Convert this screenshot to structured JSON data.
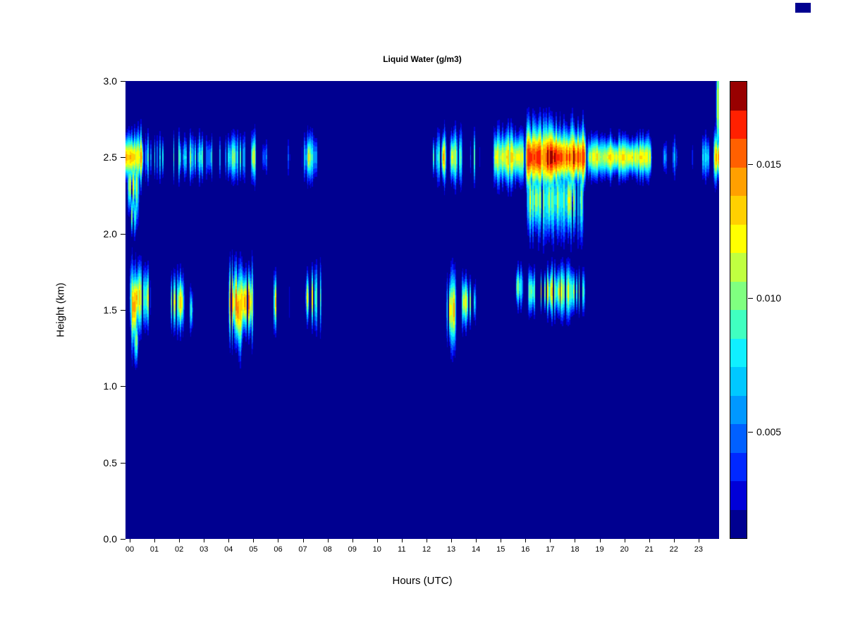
{
  "corner_mark": {
    "color": "#000090"
  },
  "chart_data": {
    "type": "heatmap",
    "title": "Liquid Water (g/m3)",
    "xlabel": "Hours (UTC)",
    "ylabel": "Height (km)",
    "x_range": [
      0,
      24
    ],
    "y_range": [
      0,
      3
    ],
    "x_ticks": [
      "00",
      "01",
      "02",
      "03",
      "04",
      "05",
      "06",
      "07",
      "08",
      "09",
      "10",
      "11",
      "12",
      "13",
      "14",
      "15",
      "16",
      "17",
      "18",
      "19",
      "20",
      "21",
      "22",
      "23"
    ],
    "y_ticks": [
      "3.0",
      "2.5",
      "2.0",
      "1.5",
      "1.0",
      "0.5",
      "0.0"
    ],
    "grid": false,
    "legend_position": "right-colorbar",
    "background_value": 0.001,
    "colorbar": {
      "range": [
        0.001,
        0.0181
      ],
      "ticks": [
        "0.015",
        "0.010",
        "0.005"
      ],
      "colors": [
        "#000090",
        "#0000D8",
        "#0028FF",
        "#0060FF",
        "#0098FF",
        "#00C8FF",
        "#10F0FF",
        "#40FFC0",
        "#80FF80",
        "#C0FF40",
        "#FFFF00",
        "#FFD000",
        "#FFA000",
        "#FF6000",
        "#FF2000",
        "#980000"
      ]
    },
    "features": [
      {
        "t0": -0.2,
        "t1": 0.75,
        "hc": 2.5,
        "hs": 0.1,
        "peak": 0.0135,
        "density": 1,
        "seed": 1
      },
      {
        "t0": 0.05,
        "t1": 0.6,
        "hc": 2.32,
        "hs": 0.14,
        "peak": 0.0115,
        "density": 0.9,
        "seed": 2
      },
      {
        "t0": 0.15,
        "t1": 0.5,
        "hc": 2.12,
        "hs": 0.1,
        "peak": 0.0095,
        "density": 0.8,
        "seed": 3
      },
      {
        "t0": 0.75,
        "t1": 1.6,
        "hc": 2.5,
        "hs": 0.09,
        "peak": 0.008,
        "density": 0.45,
        "seed": 4
      },
      {
        "t0": 1.6,
        "t1": 3.95,
        "hc": 2.5,
        "hs": 0.09,
        "peak": 0.0085,
        "density": 0.55,
        "seed": 5
      },
      {
        "t0": 2.55,
        "t1": 2.8,
        "hc": 2.5,
        "hs": 0.09,
        "peak": 0.0115,
        "density": 0.8,
        "seed": 6
      },
      {
        "t0": 4.0,
        "t1": 5.3,
        "hc": 2.5,
        "hs": 0.1,
        "peak": 0.0095,
        "density": 0.7,
        "seed": 7
      },
      {
        "t0": 4.25,
        "t1": 4.45,
        "hc": 2.5,
        "hs": 0.1,
        "peak": 0.0125,
        "density": 1,
        "seed": 8
      },
      {
        "t0": 5.05,
        "t1": 5.3,
        "hc": 2.5,
        "hs": 0.1,
        "peak": 0.0125,
        "density": 1,
        "seed": 9
      },
      {
        "t0": 5.5,
        "t1": 6.7,
        "hc": 2.5,
        "hs": 0.08,
        "peak": 0.006,
        "density": 0.35,
        "seed": 10
      },
      {
        "t0": 7.1,
        "t1": 7.85,
        "hc": 2.5,
        "hs": 0.1,
        "peak": 0.009,
        "density": 0.8,
        "seed": 11
      },
      {
        "t0": 7.3,
        "t1": 7.55,
        "hc": 2.5,
        "hs": 0.1,
        "peak": 0.0125,
        "density": 1,
        "seed": 12
      },
      {
        "t0": 12.35,
        "t1": 13.0,
        "hc": 2.5,
        "hs": 0.1,
        "peak": 0.009,
        "density": 0.7,
        "seed": 13
      },
      {
        "t0": 12.75,
        "t1": 13.0,
        "hc": 2.5,
        "hs": 0.11,
        "peak": 0.013,
        "density": 1,
        "seed": 14
      },
      {
        "t0": 13.1,
        "t1": 13.65,
        "hc": 2.5,
        "hs": 0.11,
        "peak": 0.013,
        "density": 0.85,
        "seed": 15
      },
      {
        "t0": 13.9,
        "t1": 14.35,
        "hc": 2.5,
        "hs": 0.1,
        "peak": 0.0085,
        "density": 0.6,
        "seed": 16
      },
      {
        "t0": 14.85,
        "t1": 16.15,
        "hc": 2.5,
        "hs": 0.11,
        "peak": 0.0125,
        "density": 1,
        "seed": 17
      },
      {
        "t0": 16.15,
        "t1": 18.65,
        "hc": 2.5,
        "hs": 0.13,
        "peak": 0.017,
        "density": 1,
        "seed": 18
      },
      {
        "t0": 16.2,
        "t1": 18.55,
        "hc": 2.22,
        "hs": 0.16,
        "peak": 0.011,
        "density": 0.95,
        "seed": 19
      },
      {
        "t0": 18.65,
        "t1": 21.3,
        "hc": 2.5,
        "hs": 0.08,
        "peak": 0.012,
        "density": 1,
        "seed": 20
      },
      {
        "t0": 21.7,
        "t1": 22.35,
        "hc": 2.5,
        "hs": 0.08,
        "peak": 0.006,
        "density": 0.4,
        "seed": 21
      },
      {
        "t0": 22.85,
        "t1": 23.05,
        "hc": 2.5,
        "hs": 0.07,
        "peak": 0.005,
        "density": 0.5,
        "seed": 22
      },
      {
        "t0": 23.15,
        "t1": 23.65,
        "hc": 2.5,
        "hs": 0.09,
        "peak": 0.0075,
        "density": 0.55,
        "seed": 23
      },
      {
        "t0": 23.75,
        "t1": 24.2,
        "hc": 2.5,
        "hs": 0.11,
        "peak": 0.014,
        "density": 1,
        "seed": 24
      },
      {
        "t0": 23.85,
        "t1": 24.2,
        "hc": 2.85,
        "hs": 0.22,
        "peak": 0.012,
        "density": 1,
        "seed": 25
      },
      {
        "t0": 0.15,
        "t1": 1.05,
        "hc": 1.58,
        "hs": 0.13,
        "peak": 0.013,
        "density": 0.95,
        "seed": 26
      },
      {
        "t0": 0.2,
        "t1": 0.5,
        "hc": 1.52,
        "hs": 0.16,
        "peak": 0.0155,
        "density": 1,
        "seed": 27
      },
      {
        "t0": 0.3,
        "t1": 0.55,
        "hc": 1.3,
        "hs": 0.09,
        "peak": 0.01,
        "density": 0.8,
        "seed": 28
      },
      {
        "t0": 1.8,
        "t1": 2.4,
        "hc": 1.55,
        "hs": 0.12,
        "peak": 0.013,
        "density": 0.6,
        "seed": 29
      },
      {
        "t0": 2.55,
        "t1": 2.75,
        "hc": 1.5,
        "hs": 0.1,
        "peak": 0.0105,
        "density": 0.6,
        "seed": 30
      },
      {
        "t0": 4.15,
        "t1": 5.2,
        "hc": 1.55,
        "hs": 0.14,
        "peak": 0.0145,
        "density": 0.75,
        "seed": 31
      },
      {
        "t0": 4.45,
        "t1": 4.75,
        "hc": 1.5,
        "hs": 0.16,
        "peak": 0.016,
        "density": 1,
        "seed": 32
      },
      {
        "t0": 5.85,
        "t1": 6.2,
        "hc": 1.55,
        "hs": 0.12,
        "peak": 0.012,
        "density": 0.65,
        "seed": 33
      },
      {
        "t0": 6.5,
        "t1": 6.65,
        "hc": 1.55,
        "hs": 0.12,
        "peak": 0.01,
        "density": 0.6,
        "seed": 34
      },
      {
        "t0": 7.25,
        "t1": 7.95,
        "hc": 1.58,
        "hs": 0.12,
        "peak": 0.012,
        "density": 0.6,
        "seed": 35
      },
      {
        "t0": 12.95,
        "t1": 13.4,
        "hc": 1.5,
        "hs": 0.15,
        "peak": 0.016,
        "density": 0.9,
        "seed": 36
      },
      {
        "t0": 13.55,
        "t1": 14.2,
        "hc": 1.55,
        "hs": 0.1,
        "peak": 0.0115,
        "density": 0.55,
        "seed": 37
      },
      {
        "t0": 15.75,
        "t1": 16.1,
        "hc": 1.65,
        "hs": 0.08,
        "peak": 0.01,
        "density": 0.7,
        "seed": 38
      },
      {
        "t0": 16.25,
        "t1": 18.6,
        "hc": 1.62,
        "hs": 0.1,
        "peak": 0.013,
        "density": 0.75,
        "seed": 39
      }
    ]
  }
}
